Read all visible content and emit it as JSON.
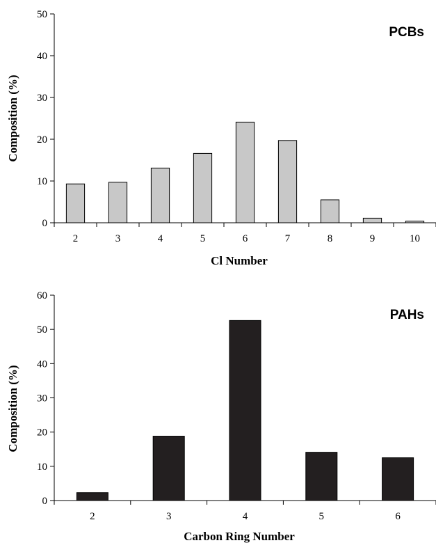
{
  "chart_data": [
    {
      "type": "bar",
      "title": "PCBs",
      "xlabel": "Cl Number",
      "ylabel": "Composition (%)",
      "categories": [
        "2",
        "3",
        "4",
        "5",
        "6",
        "7",
        "8",
        "9",
        "10"
      ],
      "values": [
        9.3,
        9.7,
        13.1,
        16.6,
        24.1,
        19.7,
        5.5,
        1.1,
        0.4
      ],
      "ylim": [
        0,
        50
      ],
      "yticks": [
        "0",
        "10",
        "20",
        "30",
        "40",
        "50"
      ],
      "bar_color": "#c8c8c8",
      "grid": false
    },
    {
      "type": "bar",
      "title": "PAHs",
      "xlabel": "Carbon Ring Number",
      "ylabel": "Composition (%)",
      "categories": [
        "2",
        "3",
        "4",
        "5",
        "6"
      ],
      "values": [
        2.3,
        18.8,
        52.6,
        14.1,
        12.5
      ],
      "ylim": [
        0,
        60
      ],
      "yticks": [
        "0",
        "10",
        "20",
        "30",
        "40",
        "50",
        "60"
      ],
      "bar_color": "#231f20",
      "grid": false
    }
  ]
}
